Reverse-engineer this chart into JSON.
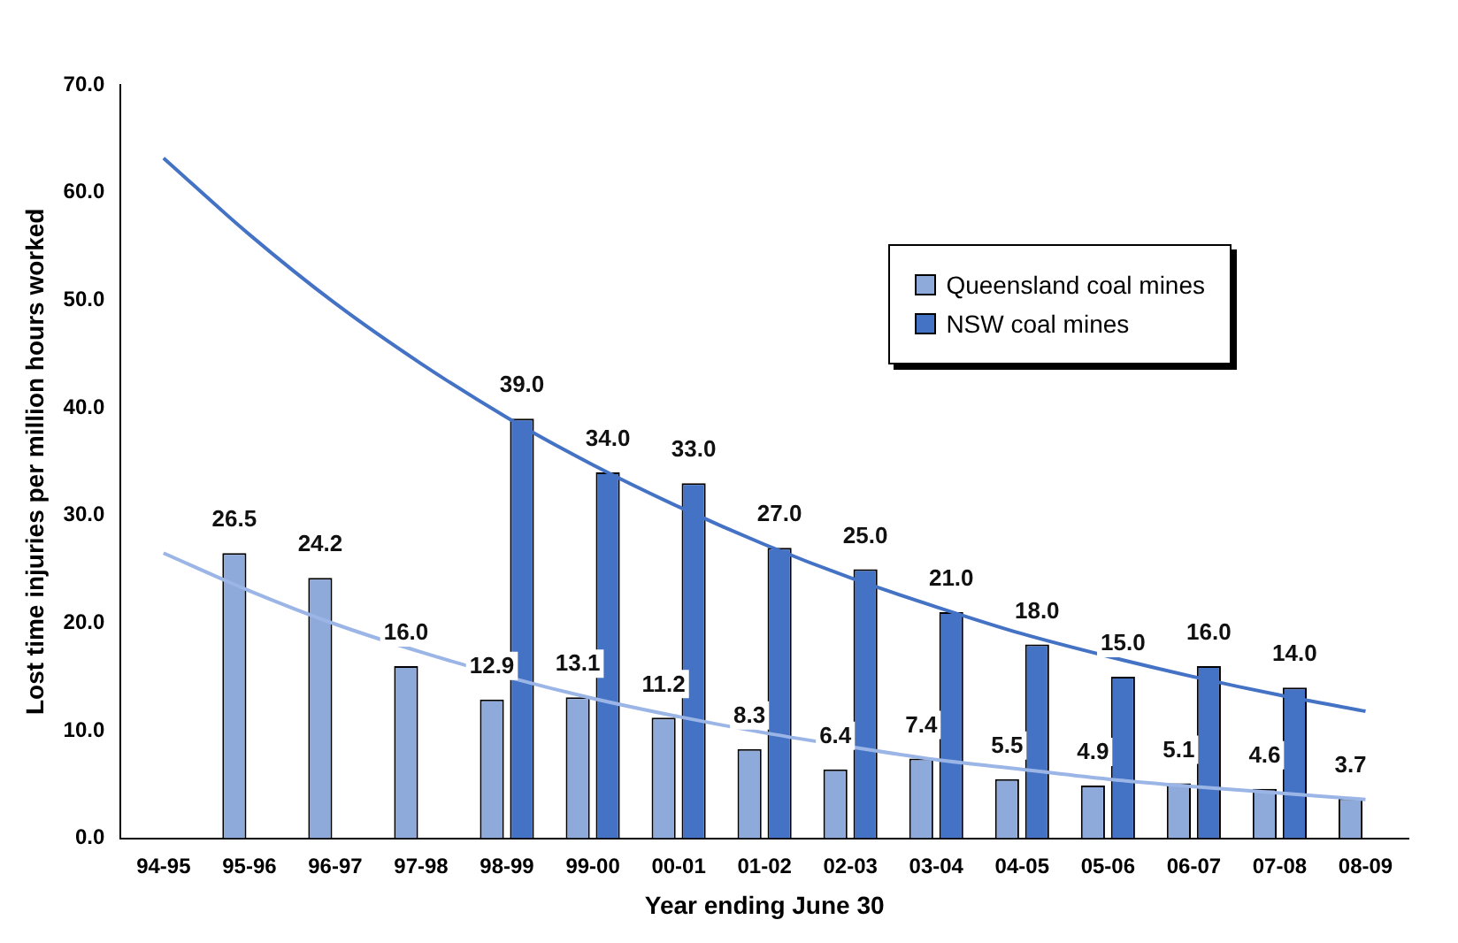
{
  "chart_data": {
    "type": "bar",
    "xlabel": "Year ending June 30",
    "ylabel": "Lost time injuries per million hours worked",
    "categories": [
      "94-95",
      "95-96",
      "96-97",
      "97-98",
      "98-99",
      "99-00",
      "00-01",
      "01-02",
      "02-03",
      "03-04",
      "04-05",
      "05-06",
      "06-07",
      "07-08",
      "08-09"
    ],
    "series": [
      {
        "name": "Queensland coal mines",
        "color": "#8eaadb",
        "values": [
          null,
          26.5,
          24.2,
          16.0,
          12.9,
          13.1,
          11.2,
          8.3,
          6.4,
          7.4,
          5.5,
          4.9,
          5.1,
          4.6,
          3.7
        ],
        "value_labels": [
          null,
          "26.5",
          "24.2",
          "16.0",
          "12.9",
          "13.1",
          "11.2",
          "8.3",
          "6.4",
          "7.4",
          "5.5",
          "4.9",
          "5.1",
          "4.6",
          "3.7"
        ]
      },
      {
        "name": "NSW coal mines",
        "color": "#4472c4",
        "values": [
          null,
          null,
          null,
          null,
          39.0,
          34.0,
          33.0,
          27.0,
          25.0,
          21.0,
          18.0,
          15.0,
          16.0,
          14.0,
          null
        ],
        "value_labels": [
          null,
          null,
          null,
          null,
          "39.0",
          "34.0",
          "33.0",
          "27.0",
          "25.0",
          "21.0",
          "18.0",
          "15.0",
          "16.0",
          "14.0",
          null
        ]
      },
      {
        "type": "line",
        "color": "#9ab5e6",
        "values": [
          26.5,
          23.0,
          19.9,
          17.3,
          15.0,
          13.0,
          11.3,
          9.8,
          8.5,
          7.3,
          6.4,
          5.5,
          4.8,
          4.2,
          3.6
        ]
      },
      {
        "type": "line",
        "color": "#4472c4",
        "values": [
          63.2,
          56.1,
          49.7,
          44.1,
          39.1,
          34.7,
          30.8,
          27.3,
          24.2,
          21.5,
          19.0,
          16.9,
          15.0,
          13.3,
          11.8
        ]
      }
    ],
    "ylim": [
      0,
      70
    ],
    "yticks": [
      {
        "value": 0,
        "label": "0.0"
      },
      {
        "value": 10,
        "label": "10.0"
      },
      {
        "value": 20,
        "label": "20.0"
      },
      {
        "value": 30,
        "label": "30.0"
      },
      {
        "value": 40,
        "label": "40.0"
      },
      {
        "value": 50,
        "label": "50.0"
      },
      {
        "value": 60,
        "label": "60.0"
      },
      {
        "value": 70,
        "label": "70.0"
      }
    ],
    "grid": false,
    "legend": "top right",
    "marker": "none",
    "line_style": "solid"
  }
}
